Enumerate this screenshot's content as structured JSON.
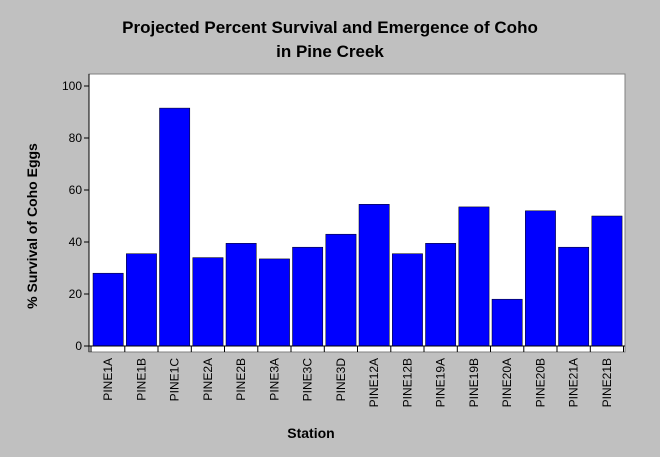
{
  "chart_data": {
    "type": "bar",
    "title_lines": [
      "Projected Percent Survival and Emergence of Coho",
      "in Pine Creek"
    ],
    "xlabel": "Station",
    "ylabel": "% Survival of Coho Eggs",
    "categories": [
      "PINE1A",
      "PINE1B",
      "PINE1C",
      "PINE2A",
      "PINE2B",
      "PINE3A",
      "PINE3C",
      "PINE3D",
      "PINE12A",
      "PINE12B",
      "PINE19A",
      "PINE19B",
      "PINE20A",
      "PINE20B",
      "PINE21A",
      "PINE21B"
    ],
    "values": [
      28,
      35.5,
      91.5,
      34,
      39.5,
      33.5,
      38,
      43,
      54.5,
      35.5,
      39.5,
      53.5,
      18,
      52,
      38,
      50
    ],
    "ylim": [
      0,
      100
    ],
    "yticks": [
      0,
      20,
      40,
      60,
      80,
      100
    ],
    "grid": false,
    "bar_color": "#0000ff",
    "plot_background": "#ffffff",
    "background": "#c0c0c0"
  }
}
